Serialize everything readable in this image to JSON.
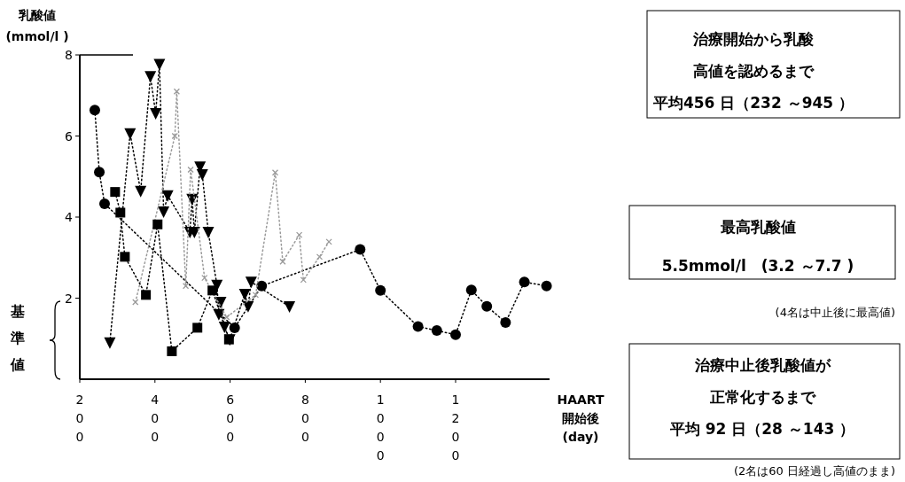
{
  "chart_data": {
    "type": "line",
    "xlabel": "HAART\n開始後\n(day)",
    "ylabel": "乳酸値\n(mmol/l )",
    "xlim": [
      200,
      1450
    ],
    "xticks": [
      200,
      400,
      600,
      800,
      1000,
      1200
    ],
    "ylim": [
      0,
      8
    ],
    "yticks": [
      2,
      4,
      6,
      8
    ],
    "line_style": "dotted",
    "series": [
      {
        "color": "#000000",
        "marker": "circle",
        "x": [
          240,
          252,
          266,
          612,
          684,
          946,
          1000,
          1100,
          1150,
          1200,
          1242,
          1283,
          1333,
          1383,
          1442
        ],
        "values": [
          6.64,
          5.11,
          4.33,
          1.27,
          2.3,
          3.2,
          2.19,
          1.3,
          1.2,
          1.1,
          2.2,
          1.8,
          1.4,
          2.4,
          2.3
        ]
      },
      {
        "color": "#000000",
        "marker": "square",
        "x": [
          294,
          308,
          320,
          376,
          407,
          445,
          513,
          553,
          597
        ],
        "values": [
          4.62,
          4.11,
          3.02,
          2.08,
          3.82,
          0.69,
          1.27,
          2.19,
          0.98
        ]
      },
      {
        "color": "#000000",
        "marker": "triangle",
        "x": [
          280,
          334,
          362,
          388,
          402,
          412,
          423,
          434,
          493,
          499,
          505,
          520,
          526,
          542,
          565,
          570,
          575,
          585,
          599,
          639,
          648,
          656,
          758
        ],
        "values": [
          0.9,
          6.06,
          4.64,
          7.47,
          6.56,
          7.77,
          4.13,
          4.53,
          3.63,
          4.44,
          3.63,
          5.24,
          5.05,
          3.63,
          2.32,
          1.6,
          1.9,
          1.29,
          0.98,
          2.1,
          1.8,
          2.4,
          1.79
        ]
      },
      {
        "color": "#9a9a9a",
        "marker": "cross",
        "x": [
          348,
          453,
          458,
          482,
          495,
          532,
          591,
          668,
          720,
          740,
          784,
          795,
          838,
          863
        ],
        "values": [
          1.9,
          6.0,
          7.1,
          2.3,
          5.17,
          2.5,
          1.53,
          2.08,
          5.1,
          2.9,
          3.56,
          2.45,
          3.02,
          3.39
        ]
      }
    ],
    "annotations": [
      "治療開始から乳酸",
      "高値を認めるまで",
      "平均456 日（232 ～945 ）",
      "最高乳酸値",
      "5.5mmol/l　(3.2 ～7.7 )",
      "(4名は中止後に最高値)",
      "治療中止後乳酸値が",
      "正常化するまで",
      "平均 92 日（28 ～143 ）",
      "(2名は60 日経過し高値のまま)",
      "基準値"
    ]
  }
}
